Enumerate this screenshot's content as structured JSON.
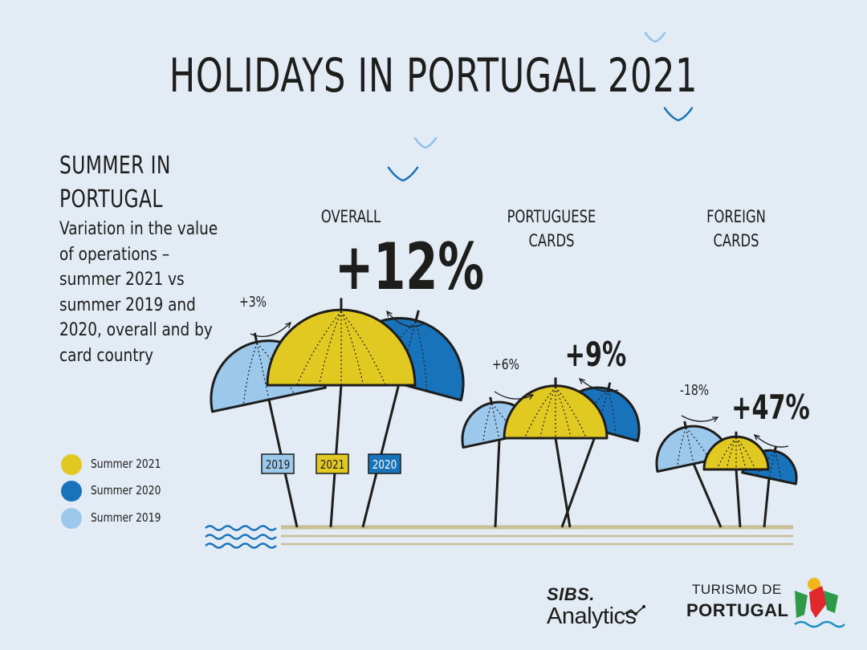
{
  "title": "HOLIDAYS IN PORTUGAL 2021",
  "subtitle": "SUMMER IN PORTUGAL",
  "description": "Variation in the value of operations – summer 2021 vs summer 2019 and 2020, overall and by card country",
  "colors": {
    "summer_2021": "#e2c922",
    "summer_2020": "#1873ba",
    "summer_2019": "#9cc8ec",
    "background": "#e3ebf4",
    "sand": "#c8bf96",
    "water": "#1873ba",
    "birds_dark": "#1873ba",
    "birds_light": "#8ec2ea"
  },
  "legend": [
    {
      "label": "Summer 2021",
      "color": "#e2c922"
    },
    {
      "label": "Summer 2020",
      "color": "#1873ba"
    },
    {
      "label": "Summer 2019",
      "color": "#9cc8ec"
    }
  ],
  "chart_data": {
    "type": "pictogram",
    "title": "HOLIDAYS IN PORTUGAL 2021",
    "subtitle": "SUMMER IN PORTUGAL",
    "series_names": [
      "Summer 2019",
      "Summer 2020",
      "Summer 2021"
    ],
    "year_tags": [
      "2019",
      "2021",
      "2020"
    ],
    "categories": [
      {
        "name": "OVERALL",
        "vs_2019_label": "+3%",
        "vs_2019": 3,
        "vs_2020_label": "+12%",
        "vs_2020": 12
      },
      {
        "name": "PORTUGUESE CARDS",
        "vs_2019_label": "+6%",
        "vs_2019": 6,
        "vs_2020_label": "+9%",
        "vs_2020": 9
      },
      {
        "name": "FOREIGN CARDS",
        "vs_2019_label": "-18%",
        "vs_2019": -18,
        "vs_2020_label": "+47%",
        "vs_2020": 47
      }
    ]
  },
  "logos": {
    "sibs_name": "SIBS.",
    "sibs_sub": "Analytics",
    "turismo_line1": "TURISMO DE",
    "turismo_line2": "PORTUGAL"
  }
}
